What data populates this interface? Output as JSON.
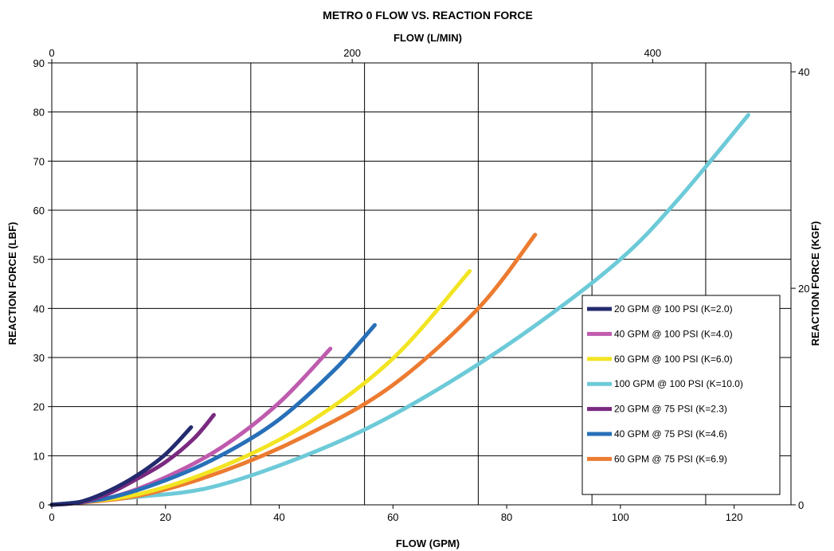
{
  "chart_data": {
    "type": "line",
    "title": "METRO 0 FLOW VS. REACTION FORCE",
    "xlabel": "FLOW (GPM)",
    "ylabel": "REACTION FORCE (LBF)",
    "x2label": "FLOW (L/MIN)",
    "y2label": "REACTION FORCE (KGF)",
    "xlim": [
      0,
      130
    ],
    "ylim": [
      0,
      90
    ],
    "x2lim": [
      0,
      492.1
    ],
    "y2lim": [
      0,
      40.82
    ],
    "xticks": [
      0,
      20,
      40,
      60,
      80,
      100,
      120
    ],
    "yticks": [
      0,
      10,
      20,
      30,
      40,
      50,
      60,
      70,
      80,
      90
    ],
    "x2ticks": [
      0,
      200,
      400
    ],
    "y2ticks": [
      0,
      20,
      40
    ],
    "x_gridlines": [
      15,
      35,
      55,
      75,
      95,
      115
    ],
    "y_gridlines": [
      10,
      20,
      30,
      40,
      50,
      60,
      70,
      80,
      90
    ],
    "grid": true,
    "legend_position": "lower-right",
    "series": [
      {
        "name": "20 GPM @ 100 PSI (K=2.0)",
        "color": "#242A6E",
        "x": [
          0,
          5,
          10,
          15,
          20,
          24.5
        ],
        "y": [
          0,
          0.6,
          2.8,
          6.0,
          10.3,
          15.8
        ]
      },
      {
        "name": "40 GPM @ 100 PSI (K=4.0)",
        "color": "#BF5BAE",
        "x": [
          0,
          10,
          20,
          30,
          40,
          49
        ],
        "y": [
          0,
          1.4,
          5.6,
          11.8,
          20.8,
          31.8
        ]
      },
      {
        "name": "60 GPM @ 100 PSI (K=6.0)",
        "color": "#F2E422",
        "x": [
          0,
          15,
          30,
          45,
          60,
          73.5
        ],
        "y": [
          0,
          2.1,
          7.8,
          16.6,
          29.8,
          47.6
        ]
      },
      {
        "name": "100 GPM @ 100 PSI (K=10.0)",
        "color": "#6DCAD8",
        "x": [
          0,
          15,
          27,
          40,
          55,
          70,
          85,
          100,
          110,
          122.5
        ],
        "y": [
          0,
          1.6,
          3.3,
          8.0,
          15.3,
          25.0,
          36.5,
          50.0,
          62.0,
          79.4
        ]
      },
      {
        "name": "20 GPM @ 75 PSI (K=2.3)",
        "color": "#7A2A80",
        "x": [
          0,
          5,
          10,
          15,
          20,
          25,
          28.5
        ],
        "y": [
          0,
          0.5,
          2.3,
          5.3,
          8.7,
          13.5,
          18.3
        ]
      },
      {
        "name": "40 GPM @ 75 PSI (K=4.6)",
        "color": "#2770B8",
        "x": [
          0,
          10,
          20,
          30,
          40,
          50,
          56.8
        ],
        "y": [
          0,
          1.4,
          5.0,
          10.2,
          17.4,
          27.8,
          36.6
        ]
      },
      {
        "name": "60 GPM @ 75 PSI (K=6.9)",
        "color": "#EC7B30",
        "x": [
          0,
          15,
          30,
          45,
          60,
          75,
          85
        ],
        "y": [
          0,
          1.8,
          6.8,
          14.3,
          24.4,
          40.0,
          55.0
        ]
      }
    ]
  }
}
